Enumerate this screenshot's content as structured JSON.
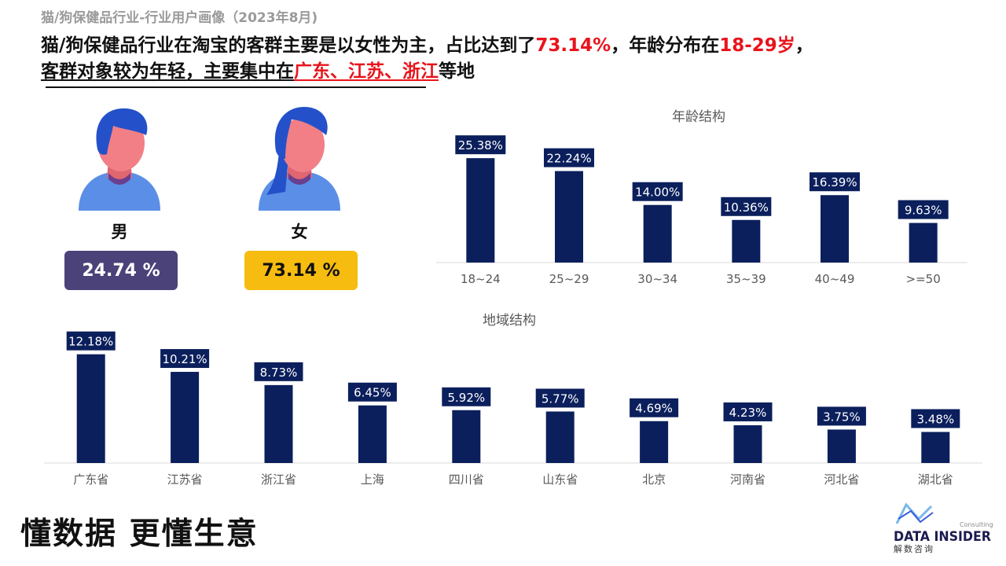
{
  "subtitle": "猫/狗保健品行业-行业用户画像（2023年8月)",
  "headline": {
    "l1_a": "猫/狗保健品行业在淘宝的客群主要是以女性为主，占比达到了",
    "l1_b": "73.14%",
    "l1_c": "，年龄分布在",
    "l1_d": "18-29岁",
    "l1_e": "，",
    "l2_a": "客群对象较为年轻，主要集中在",
    "l2_b": "广东、江苏、浙江",
    "l2_c": "等地"
  },
  "gender": {
    "male_label": "男",
    "male_value": "24.74 %",
    "female_label": "女",
    "female_value": "73.14 %",
    "colors": {
      "male_box": "#4a4278",
      "female_box": "#f6bc0f",
      "hair": "#2451c9",
      "skin": "#f27f86",
      "shirt": "#5b8ee6"
    }
  },
  "chart_data": [
    {
      "type": "bar",
      "title": "年龄结构",
      "categories": [
        "18~24",
        "25~29",
        "30~34",
        "35~39",
        "40~49",
        ">=50"
      ],
      "values": [
        25.38,
        22.24,
        14.0,
        10.36,
        16.39,
        9.63
      ],
      "labels": [
        "25.38%",
        "22.24%",
        "14.00%",
        "10.36%",
        "16.39%",
        "9.63%"
      ],
      "ylim": [
        0,
        30
      ],
      "grid": false,
      "bar_color": "#0b1f5c"
    },
    {
      "type": "bar",
      "title": "地域结构",
      "categories": [
        "广东省",
        "江苏省",
        "浙江省",
        "上海",
        "四川省",
        "山东省",
        "北京",
        "河南省",
        "河北省",
        "湖北省"
      ],
      "values": [
        12.18,
        10.21,
        8.73,
        6.45,
        5.92,
        5.77,
        4.69,
        4.23,
        3.75,
        3.48
      ],
      "labels": [
        "12.18%",
        "10.21%",
        "8.73%",
        "6.45%",
        "5.92%",
        "5.77%",
        "4.69%",
        "4.23%",
        "3.75%",
        "3.48%"
      ],
      "ylim": [
        0,
        14
      ],
      "grid": false,
      "bar_color": "#0b1f5c"
    }
  ],
  "footer": {
    "slogan": "懂数据 更懂生意",
    "logo_main": "DATA INSIDER",
    "logo_small": "Consulting",
    "logo_cn": "解数咨询"
  }
}
